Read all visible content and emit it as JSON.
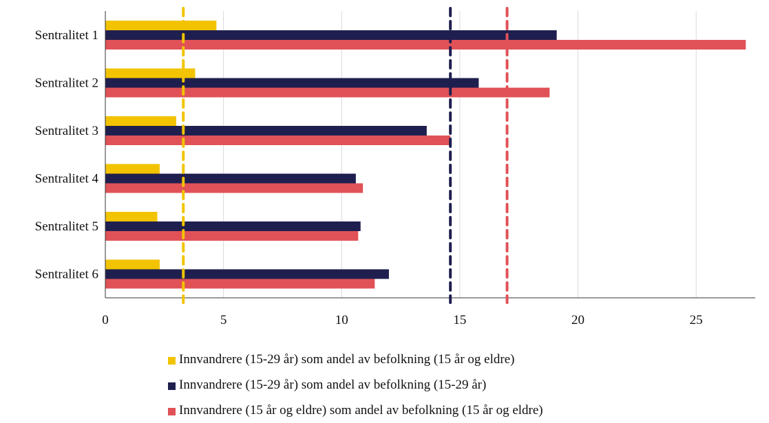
{
  "chart_data": {
    "type": "bar",
    "orientation": "horizontal",
    "title": "",
    "xlabel": "",
    "ylabel": "",
    "categories": [
      "Sentralitet 1",
      "Sentralitet 2",
      "Sentralitet 3",
      "Sentralitet 4",
      "Sentralitet 5",
      "Sentralitet 6"
    ],
    "series": [
      {
        "name": "Innvandrere (15-29 år) som andel av befolkning (15 år og eldre)",
        "color": "#F2C300",
        "values": [
          4.7,
          3.8,
          3.0,
          2.3,
          2.2,
          2.3
        ]
      },
      {
        "name": "Innvandrere (15-29 år) som andel av befolkning (15-29 år)",
        "color": "#1F1F4F",
        "values": [
          19.1,
          15.8,
          13.6,
          10.6,
          10.8,
          12.0
        ]
      },
      {
        "name": "Innvandrere (15 år og eldre) som andel av befolkning (15 år og eldre)",
        "color": "#E05257",
        "values": [
          27.1,
          18.8,
          14.6,
          10.9,
          10.7,
          11.4
        ]
      }
    ],
    "reference_lines": [
      {
        "value": 3.3,
        "color": "#F2C300",
        "style": "dashed"
      },
      {
        "value": 14.6,
        "color": "#1F1F4F",
        "style": "dashed"
      },
      {
        "value": 17.0,
        "color": "#E05257",
        "style": "dashed"
      }
    ],
    "xlim": [
      0,
      27.5
    ],
    "xticks": [
      0,
      5,
      10,
      15,
      20,
      25
    ],
    "grid": "vertical",
    "legend_position": "bottom"
  }
}
